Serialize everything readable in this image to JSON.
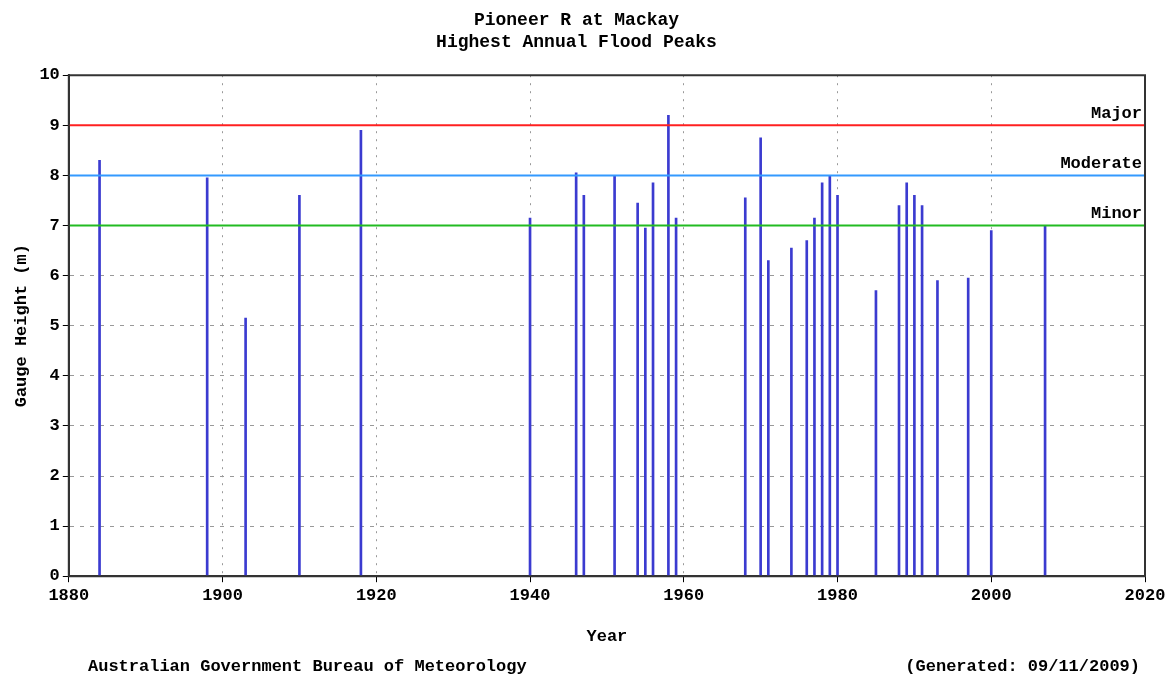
{
  "chart_data": {
    "type": "bar",
    "title": "Pioneer R at Mackay",
    "subtitle": "Highest Annual Flood Peaks",
    "xlabel": "Year",
    "ylabel": "Gauge Height (m)",
    "x": [
      1884,
      1898,
      1903,
      1910,
      1918,
      1940,
      1946,
      1947,
      1951,
      1954,
      1955,
      1956,
      1958,
      1959,
      1968,
      1970,
      1971,
      1974,
      1976,
      1977,
      1978,
      1979,
      1980,
      1985,
      1988,
      1989,
      1990,
      1991,
      1993,
      1997,
      2000,
      2007
    ],
    "values": [
      8.3,
      7.95,
      5.15,
      7.6,
      8.9,
      7.15,
      8.05,
      7.6,
      8.0,
      7.45,
      6.95,
      7.85,
      9.2,
      7.15,
      7.55,
      8.75,
      6.3,
      6.55,
      6.7,
      7.15,
      7.85,
      8.0,
      7.6,
      5.7,
      7.4,
      7.85,
      7.6,
      7.4,
      5.9,
      5.95,
      6.9,
      7.0
    ],
    "color": "#3b3bd0",
    "xlim": [
      1880,
      2020
    ],
    "xticks": [
      1880,
      1900,
      1920,
      1940,
      1960,
      1980,
      2000,
      2020
    ],
    "ylim": [
      0,
      10
    ],
    "yticks": [
      0,
      1,
      2,
      3,
      4,
      5,
      6,
      7,
      8,
      9,
      10
    ],
    "grid": true,
    "ref_lines": [
      {
        "axis": "y",
        "value": 9,
        "label": "Major",
        "color": "#ff2020"
      },
      {
        "axis": "y",
        "value": 8,
        "label": "Moderate",
        "color": "#3399ff"
      },
      {
        "axis": "y",
        "value": 7,
        "label": "Minor",
        "color": "#22bb22"
      }
    ],
    "annotations": [
      "Australian Government Bureau of Meteorology",
      "(Generated: 09/11/2009)"
    ]
  }
}
